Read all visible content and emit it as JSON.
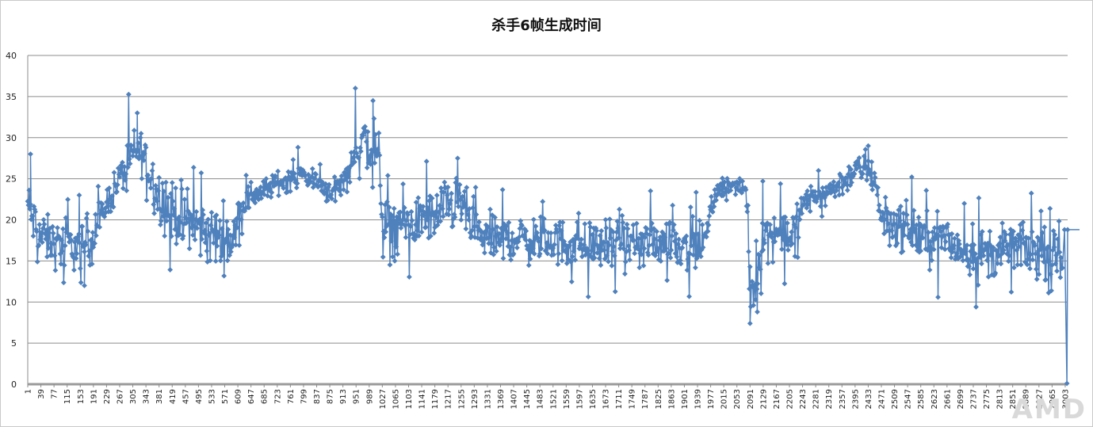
{
  "chart_data": {
    "type": "line",
    "title": "杀手6帧生成时间",
    "xlabel": "",
    "ylabel": "",
    "ylim": [
      0,
      40
    ],
    "yticks": [
      0,
      5,
      10,
      15,
      20,
      25,
      30,
      35,
      40
    ],
    "xlim": [
      1,
      3010
    ],
    "xtick_step": 38,
    "grid": true,
    "legend": "none",
    "markers": "diamond",
    "series": [
      {
        "color": "#4f81bd",
        "baseline_profile": [
          [
            1,
            22
          ],
          [
            15,
            20
          ],
          [
            40,
            18
          ],
          [
            80,
            17
          ],
          [
            120,
            17
          ],
          [
            150,
            16.5
          ],
          [
            191,
            18
          ],
          [
            229,
            22
          ],
          [
            267,
            25
          ],
          [
            305,
            28
          ],
          [
            330,
            28.5
          ],
          [
            343,
            27
          ],
          [
            381,
            23
          ],
          [
            419,
            21
          ],
          [
            457,
            20
          ],
          [
            495,
            19
          ],
          [
            533,
            18
          ],
          [
            571,
            18
          ],
          [
            600,
            17.5
          ],
          [
            609,
            21
          ],
          [
            647,
            23
          ],
          [
            685,
            23.5
          ],
          [
            723,
            24.5
          ],
          [
            761,
            25
          ],
          [
            799,
            25.5
          ],
          [
            837,
            24.5
          ],
          [
            875,
            23.5
          ],
          [
            913,
            24.5
          ],
          [
            951,
            28.5
          ],
          [
            975,
            29.5
          ],
          [
            1000,
            28.5
          ],
          [
            1020,
            27
          ],
          [
            1027,
            19
          ],
          [
            1065,
            19
          ],
          [
            1103,
            19.5
          ],
          [
            1141,
            20
          ],
          [
            1179,
            20.5
          ],
          [
            1217,
            22
          ],
          [
            1255,
            22
          ],
          [
            1280,
            20
          ],
          [
            1293,
            18
          ],
          [
            1331,
            18
          ],
          [
            1369,
            17.5
          ],
          [
            1407,
            18
          ],
          [
            1445,
            17.5
          ],
          [
            1483,
            17.5
          ],
          [
            1521,
            17.5
          ],
          [
            1559,
            17
          ],
          [
            1597,
            17
          ],
          [
            1635,
            17
          ],
          [
            1673,
            17
          ],
          [
            1711,
            17
          ],
          [
            1749,
            16.5
          ],
          [
            1787,
            17
          ],
          [
            1825,
            17.5
          ],
          [
            1863,
            17.5
          ],
          [
            1901,
            17
          ],
          [
            1939,
            17
          ],
          [
            1960,
            17.5
          ],
          [
            1977,
            21
          ],
          [
            2000,
            23.5
          ],
          [
            2015,
            24.5
          ],
          [
            2053,
            24
          ],
          [
            2080,
            23.5
          ],
          [
            2091,
            12
          ],
          [
            2110,
            12
          ],
          [
            2125,
            18
          ],
          [
            2167,
            18.5
          ],
          [
            2205,
            18.5
          ],
          [
            2230,
            19
          ],
          [
            2243,
            22
          ],
          [
            2281,
            23
          ],
          [
            2319,
            23.5
          ],
          [
            2357,
            24.5
          ],
          [
            2395,
            26
          ],
          [
            2433,
            26
          ],
          [
            2455,
            25
          ],
          [
            2471,
            20
          ],
          [
            2509,
            19.5
          ],
          [
            2547,
            19
          ],
          [
            2585,
            18
          ],
          [
            2623,
            17.5
          ],
          [
            2661,
            17.5
          ],
          [
            2699,
            16.5
          ],
          [
            2737,
            16
          ],
          [
            2775,
            16
          ],
          [
            2813,
            16
          ],
          [
            2851,
            17
          ],
          [
            2889,
            16.5
          ],
          [
            2927,
            16
          ],
          [
            2965,
            15.5
          ],
          [
            2995,
            15.5
          ]
        ],
        "spread_profile": [
          [
            1,
            3
          ],
          [
            191,
            3
          ],
          [
            229,
            2
          ],
          [
            305,
            3
          ],
          [
            343,
            3
          ],
          [
            381,
            4
          ],
          [
            571,
            4
          ],
          [
            609,
            2
          ],
          [
            685,
            1.5
          ],
          [
            913,
            1.5
          ],
          [
            951,
            4
          ],
          [
            1020,
            4
          ],
          [
            1027,
            3.5
          ],
          [
            1255,
            3
          ],
          [
            1293,
            3
          ],
          [
            1939,
            3
          ],
          [
            1977,
            1
          ],
          [
            2080,
            1
          ],
          [
            2091,
            4
          ],
          [
            2125,
            3
          ],
          [
            2230,
            3
          ],
          [
            2243,
            1.5
          ],
          [
            2433,
            2
          ],
          [
            2471,
            3
          ],
          [
            2995,
            3
          ]
        ],
        "final_points": [
          [
            3001,
            18.8
          ],
          [
            3008,
            0.1
          ],
          [
            3010,
            18.8
          ],
          [
            3060,
            18.8
          ]
        ]
      }
    ]
  },
  "watermark": "AMD"
}
